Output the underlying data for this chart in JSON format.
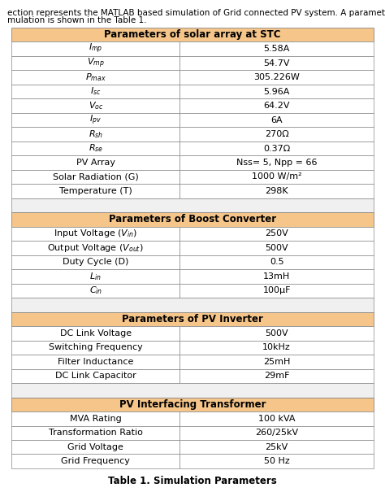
{
  "title": "Table 1. Simulation Parameters",
  "top_text_line1": "ection represents the MATLAB based simulation of Grid connected PV system. A parameters u",
  "top_text_line2": "mulation is shown in the Table 1.",
  "header_bg": "#F5C58A",
  "row_bg": "#FFFFFF",
  "border_color": "#888888",
  "sections": [
    {
      "header": "Parameters of solar array at STC",
      "rows": [
        [
          "$I_{mp}$",
          "5.58A"
        ],
        [
          "$V_{mp}$",
          "54.7V"
        ],
        [
          "$P_{max}$",
          "305.226W"
        ],
        [
          "$I_{sc}$",
          "5.96A"
        ],
        [
          "$V_{oc}$",
          "64.2V"
        ],
        [
          "$I_{pv}$",
          "6A"
        ],
        [
          "$R_{sh}$",
          "270Ω"
        ],
        [
          "$R_{se}$",
          "0.37Ω"
        ],
        [
          "PV Array",
          "Nss= 5, Npp = 66"
        ],
        [
          "Solar Radiation (G)",
          "1000 W/m²"
        ],
        [
          "Temperature (T)",
          "298K"
        ]
      ]
    },
    {
      "header": "Parameters of Boost Converter",
      "rows": [
        [
          "Input Voltage ($V_{in}$)",
          "250V"
        ],
        [
          "Output Voltage ($V_{out}$)",
          "500V"
        ],
        [
          "Duty Cycle (D)",
          "0.5"
        ],
        [
          "$L_{in}$",
          "13mH"
        ],
        [
          "$C_{in}$",
          "100μF"
        ]
      ]
    },
    {
      "header": "Parameters of PV Inverter",
      "rows": [
        [
          "DC Link Voltage",
          "500V"
        ],
        [
          "Switching Frequency",
          "10kHz"
        ],
        [
          "Filter Inductance",
          "25mH"
        ],
        [
          "DC Link Capacitor",
          "29mF"
        ]
      ]
    },
    {
      "header": "PV Interfacing Transformer",
      "rows": [
        [
          "MVA Rating",
          "100 kVA"
        ],
        [
          "Transformation Ratio",
          "260/25kV"
        ],
        [
          "Grid Voltage",
          "25kV"
        ],
        [
          "Grid Frequency",
          "50 Hz"
        ]
      ]
    }
  ],
  "figsize": [
    4.74,
    6.05
  ],
  "dpi": 100
}
